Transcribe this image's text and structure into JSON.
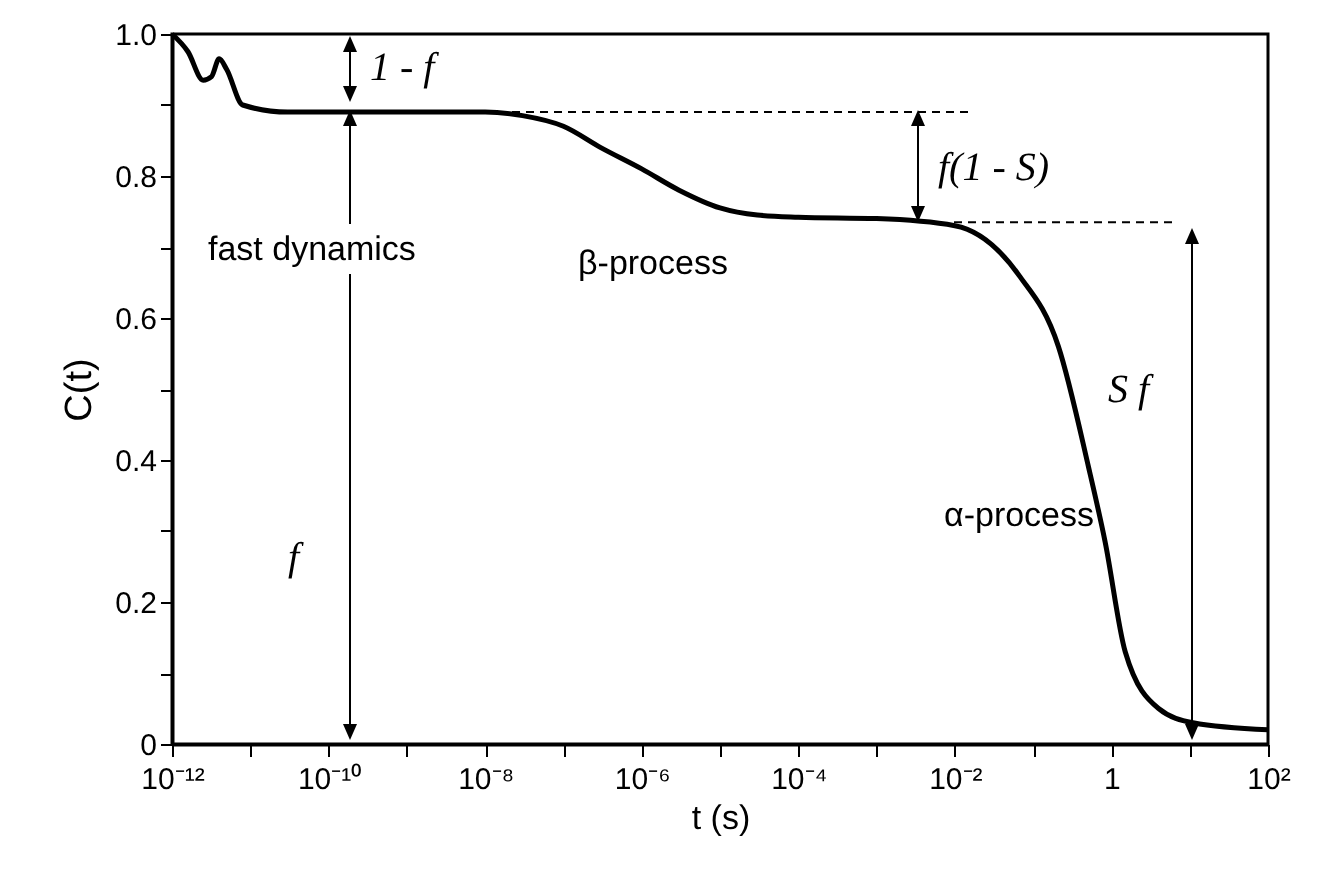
{
  "chart_data": {
    "type": "line",
    "xlabel": "t (s)",
    "ylabel": "C(t)",
    "log": "x",
    "x": [
      1e-12,
      1.6e-12,
      2.5e-12,
      3.2e-12,
      4e-12,
      5e-12,
      8e-12,
      3e-11,
      1e-08,
      3e-08,
      1e-07,
      3e-07,
      1e-06,
      3e-06,
      1e-05,
      3e-05,
      0.0001,
      0.001,
      0.01,
      0.066,
      0.21,
      0.51,
      0.83,
      1.5,
      4,
      11,
      100
    ],
    "series": [
      {
        "color": "#000000",
        "values": [
          1.0,
          0.975,
          0.935,
          0.94,
          0.965,
          0.95,
          0.9,
          0.89,
          0.89,
          0.885,
          0.87,
          0.84,
          0.81,
          0.78,
          0.755,
          0.745,
          0.742,
          0.74,
          0.73,
          0.66,
          0.56,
          0.39,
          0.285,
          0.13,
          0.05,
          0.03,
          0.02
        ]
      }
    ],
    "xlim": [
      1e-12,
      100
    ],
    "xticks": [
      {
        "value": 1e-12,
        "label": "10⁻¹²"
      },
      {
        "value": 1e-11,
        "label": null
      },
      {
        "value": 1e-10,
        "label": "10⁻¹⁰"
      },
      {
        "value": 1e-09,
        "label": null
      },
      {
        "value": 1e-08,
        "label": "10⁻⁸"
      },
      {
        "value": 1e-07,
        "label": null
      },
      {
        "value": 1e-06,
        "label": "10⁻⁶"
      },
      {
        "value": 1e-05,
        "label": null
      },
      {
        "value": 0.0001,
        "label": "10⁻⁴"
      },
      {
        "value": 0.001,
        "label": null
      },
      {
        "value": 0.01,
        "label": "10⁻²"
      },
      {
        "value": 0.1,
        "label": null
      },
      {
        "value": 1,
        "label": "1"
      },
      {
        "value": 10,
        "label": null
      },
      {
        "value": 100,
        "label": "10²"
      }
    ],
    "ylim": [
      0,
      1.0
    ],
    "yticks": [
      {
        "value": 0,
        "label": "0"
      },
      {
        "value": 0.1,
        "label": null
      },
      {
        "value": 0.2,
        "label": "0.2"
      },
      {
        "value": 0.3,
        "label": null
      },
      {
        "value": 0.4,
        "label": "0.4"
      },
      {
        "value": 0.5,
        "label": null
      },
      {
        "value": 0.6,
        "label": "0.6"
      },
      {
        "value": 0.7,
        "label": null
      },
      {
        "value": 0.8,
        "label": "0.8"
      },
      {
        "value": 0.9,
        "label": null
      },
      {
        "value": 1.0,
        "label": "1.0"
      }
    ],
    "grid": false,
    "line_style": "solid",
    "marker": "none",
    "ref_lines": [
      {
        "axis": "y",
        "value": 0.89,
        "label": null,
        "line_style": "dashed"
      },
      {
        "axis": "y",
        "value": 0.735,
        "label": null,
        "line_style": "dashed"
      }
    ],
    "annotations": [
      "1 - f",
      "f(1 - S)",
      "S f",
      "f",
      "fast dynamics",
      "β-process",
      "α-process"
    ]
  }
}
